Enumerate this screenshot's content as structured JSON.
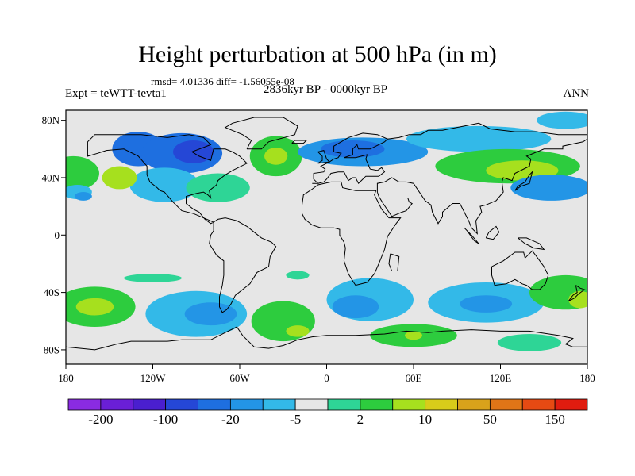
{
  "title": "Height perturbation at 500 hPa (in m)",
  "stats": "rmsd= 4.01336 diff= -1.56055e-08",
  "experiment": "Expt = teWTT-tevta1",
  "period": "2836kyr BP - 0000kyr BP",
  "season": "ANN",
  "lon_ticks": [
    {
      "lon": -180,
      "label": "180"
    },
    {
      "lon": -120,
      "label": "120W"
    },
    {
      "lon": -60,
      "label": "60W"
    },
    {
      "lon": 0,
      "label": "0"
    },
    {
      "lon": 60,
      "label": "60E"
    },
    {
      "lon": 120,
      "label": "120E"
    },
    {
      "lon": 180,
      "label": "180"
    }
  ],
  "lat_ticks": [
    {
      "lat": 80,
      "label": "80N"
    },
    {
      "lat": 40,
      "label": "40N"
    },
    {
      "lat": 0,
      "label": "0"
    },
    {
      "lat": -40,
      "label": "40S"
    },
    {
      "lat": -80,
      "label": "80S"
    }
  ],
  "colorbar": {
    "colors": [
      "#8a2be2",
      "#6a1fd6",
      "#4a1fcf",
      "#2547d6",
      "#1e6fe0",
      "#2395e6",
      "#33b9e8",
      "#e6e6e6",
      "#2ed596",
      "#2dcc3e",
      "#a6e01e",
      "#d8cc1a",
      "#d9a21b",
      "#e07517",
      "#e64a13",
      "#e01c0f"
    ],
    "labels": [
      "-200",
      "-100",
      "-20",
      "-5",
      "2",
      "10",
      "50",
      "150"
    ],
    "bg": "#e6e6e6"
  },
  "field": [
    {
      "lon": -130,
      "lat": 60,
      "rx": 18,
      "ry": 12,
      "level": 4
    },
    {
      "lon": -100,
      "lat": 57,
      "rx": 28,
      "ry": 14,
      "level": 4
    },
    {
      "lon": -92,
      "lat": 58,
      "rx": 14,
      "ry": 8,
      "level": 3
    },
    {
      "lon": -112,
      "lat": 35,
      "rx": 24,
      "ry": 12,
      "level": 6
    },
    {
      "lon": -175,
      "lat": 43,
      "rx": 18,
      "ry": 12,
      "level": 9
    },
    {
      "lon": -143,
      "lat": 40,
      "rx": 12,
      "ry": 8,
      "level": 10
    },
    {
      "lon": -172,
      "lat": 30,
      "rx": 10,
      "ry": 5,
      "level": 6
    },
    {
      "lon": -168,
      "lat": 27,
      "rx": 6,
      "ry": 3,
      "level": 5
    },
    {
      "lon": -75,
      "lat": 33,
      "rx": 22,
      "ry": 10,
      "level": 8
    },
    {
      "lon": -35,
      "lat": 55,
      "rx": 18,
      "ry": 14,
      "level": 9
    },
    {
      "lon": -35,
      "lat": 55,
      "rx": 8,
      "ry": 6,
      "level": 10
    },
    {
      "lon": 25,
      "lat": 58,
      "rx": 45,
      "ry": 10,
      "level": 5
    },
    {
      "lon": 18,
      "lat": 60,
      "rx": 22,
      "ry": 6,
      "level": 4
    },
    {
      "lon": 105,
      "lat": 67,
      "rx": 50,
      "ry": 9,
      "level": 6
    },
    {
      "lon": 125,
      "lat": 48,
      "rx": 50,
      "ry": 12,
      "level": 9
    },
    {
      "lon": 135,
      "lat": 45,
      "rx": 25,
      "ry": 7,
      "level": 10
    },
    {
      "lon": 155,
      "lat": 33,
      "rx": 28,
      "ry": 9,
      "level": 5
    },
    {
      "lon": 165,
      "lat": 80,
      "rx": 20,
      "ry": 6,
      "level": 6
    },
    {
      "lon": -120,
      "lat": -30,
      "rx": 20,
      "ry": 3,
      "level": 8
    },
    {
      "lon": -20,
      "lat": -28,
      "rx": 8,
      "ry": 3,
      "level": 8
    },
    {
      "lon": -160,
      "lat": -50,
      "rx": 28,
      "ry": 14,
      "level": 9
    },
    {
      "lon": -160,
      "lat": -50,
      "rx": 13,
      "ry": 6,
      "level": 10
    },
    {
      "lon": -90,
      "lat": -55,
      "rx": 35,
      "ry": 16,
      "level": 6
    },
    {
      "lon": -80,
      "lat": -55,
      "rx": 18,
      "ry": 8,
      "level": 5
    },
    {
      "lon": -30,
      "lat": -60,
      "rx": 22,
      "ry": 14,
      "level": 9
    },
    {
      "lon": -20,
      "lat": -67,
      "rx": 8,
      "ry": 4,
      "level": 10
    },
    {
      "lon": 30,
      "lat": -45,
      "rx": 30,
      "ry": 15,
      "level": 6
    },
    {
      "lon": 20,
      "lat": -50,
      "rx": 16,
      "ry": 8,
      "level": 5
    },
    {
      "lon": 110,
      "lat": -47,
      "rx": 40,
      "ry": 14,
      "level": 6
    },
    {
      "lon": 110,
      "lat": -48,
      "rx": 18,
      "ry": 6,
      "level": 5
    },
    {
      "lon": 60,
      "lat": -70,
      "rx": 30,
      "ry": 8,
      "level": 9
    },
    {
      "lon": 60,
      "lat": -70,
      "rx": 6,
      "ry": 3,
      "level": 10
    },
    {
      "lon": 165,
      "lat": -40,
      "rx": 25,
      "ry": 12,
      "level": 9
    },
    {
      "lon": 175,
      "lat": -45,
      "rx": 8,
      "ry": 6,
      "level": 10
    },
    {
      "lon": 140,
      "lat": -75,
      "rx": 22,
      "ry": 6,
      "level": 8
    }
  ]
}
